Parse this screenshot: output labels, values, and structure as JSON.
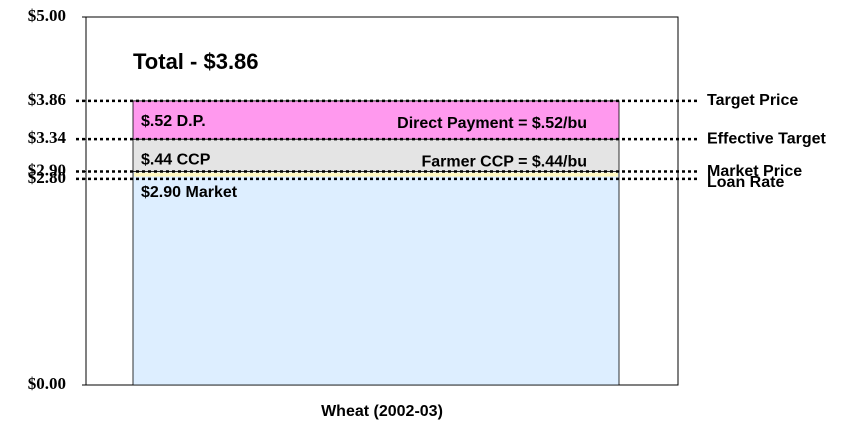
{
  "chart_data": {
    "type": "stacked_bar",
    "annotation": "Total - $3.86",
    "categories": [
      "Wheat (2002-03)"
    ],
    "series": [
      {
        "name": "$2.90 Market",
        "color": "#ddeeff",
        "values": [
          2.9
        ]
      },
      {
        "name": "$.44 CCP",
        "color": "#e4e4e4",
        "values": [
          0.44
        ]
      },
      {
        "name": "$.52 D.P.",
        "color": "#ff99ee",
        "values": [
          0.52
        ]
      }
    ],
    "segment_notes": [
      null,
      "Farmer CCP = $.44/bu",
      "Direct Payment = $.52/bu"
    ],
    "ylim": [
      0,
      5
    ],
    "yticks": [
      {
        "value": 0,
        "label": "$0.00"
      },
      {
        "value": 2.8,
        "label": "$2.80"
      },
      {
        "value": 2.9,
        "label": "$2.90"
      },
      {
        "value": 3.34,
        "label": "$3.34"
      },
      {
        "value": 3.86,
        "label": "$3.86"
      },
      {
        "value": 5,
        "label": "$5.00"
      }
    ],
    "reference_lines": [
      {
        "value": 3.86,
        "label": "Target Price"
      },
      {
        "value": 3.34,
        "label": "Effective Target"
      },
      {
        "value": 2.9,
        "label": "Market Price"
      },
      {
        "value": 2.8,
        "label": "Loan Rate"
      }
    ]
  }
}
